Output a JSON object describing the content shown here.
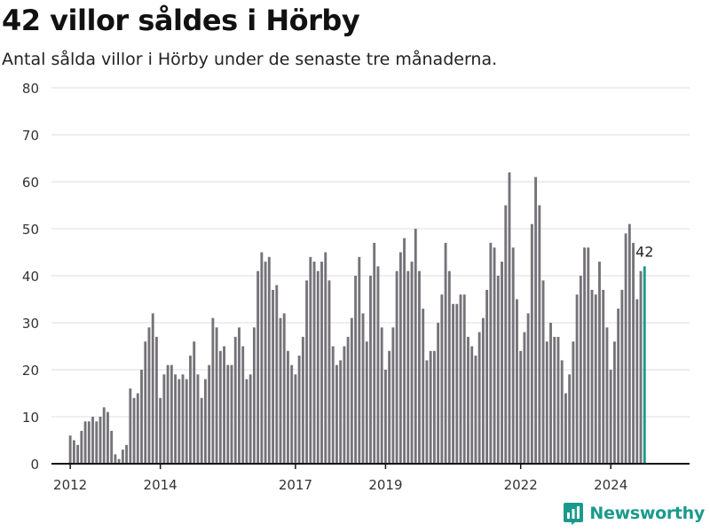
{
  "chart_data": {
    "type": "bar",
    "title": "42 villor såldes i Hörby",
    "subtitle": "Antal sålda villor i Hörby under de senaste tre månaderna.",
    "xlabel": "",
    "ylabel": "",
    "ylim": [
      0,
      80
    ],
    "yticks": [
      0,
      10,
      20,
      30,
      40,
      50,
      60,
      70,
      80
    ],
    "xlim": [
      "2011-08",
      "2025-10"
    ],
    "xticks": [
      {
        "value": "2012-01",
        "label": "2012"
      },
      {
        "value": "2014-01",
        "label": "2014"
      },
      {
        "value": "2017-01",
        "label": "2017"
      },
      {
        "value": "2019-01",
        "label": "2019"
      },
      {
        "value": "2022-01",
        "label": "2022"
      },
      {
        "value": "2024-01",
        "label": "2024"
      }
    ],
    "grid": true,
    "legend": "none",
    "bar_color": "#757378",
    "highlight_color": "#1a9a8c",
    "highlight_last": true,
    "annotation": {
      "text": "42",
      "at": "2024-10"
    },
    "months": [
      "2012-01",
      "2012-02",
      "2012-03",
      "2012-04",
      "2012-05",
      "2012-06",
      "2012-07",
      "2012-08",
      "2012-09",
      "2012-10",
      "2012-11",
      "2012-12",
      "2013-01",
      "2013-02",
      "2013-03",
      "2013-04",
      "2013-05",
      "2013-06",
      "2013-07",
      "2013-08",
      "2013-09",
      "2013-10",
      "2013-11",
      "2013-12",
      "2014-01",
      "2014-02",
      "2014-03",
      "2014-04",
      "2014-05",
      "2014-06",
      "2014-07",
      "2014-08",
      "2014-09",
      "2014-10",
      "2014-11",
      "2014-12",
      "2015-01",
      "2015-02",
      "2015-03",
      "2015-04",
      "2015-05",
      "2015-06",
      "2015-07",
      "2015-08",
      "2015-09",
      "2015-10",
      "2015-11",
      "2015-12",
      "2016-01",
      "2016-02",
      "2016-03",
      "2016-04",
      "2016-05",
      "2016-06",
      "2016-07",
      "2016-08",
      "2016-09",
      "2016-10",
      "2016-11",
      "2016-12",
      "2017-01",
      "2017-02",
      "2017-03",
      "2017-04",
      "2017-05",
      "2017-06",
      "2017-07",
      "2017-08",
      "2017-09",
      "2017-10",
      "2017-11",
      "2017-12",
      "2018-01",
      "2018-02",
      "2018-03",
      "2018-04",
      "2018-05",
      "2018-06",
      "2018-07",
      "2018-08",
      "2018-09",
      "2018-10",
      "2018-11",
      "2018-12",
      "2019-01",
      "2019-02",
      "2019-03",
      "2019-04",
      "2019-05",
      "2019-06",
      "2019-07",
      "2019-08",
      "2019-09",
      "2019-10",
      "2019-11",
      "2019-12",
      "2020-01",
      "2020-02",
      "2020-03",
      "2020-04",
      "2020-05",
      "2020-06",
      "2020-07",
      "2020-08",
      "2020-09",
      "2020-10",
      "2020-11",
      "2020-12",
      "2021-01",
      "2021-02",
      "2021-03",
      "2021-04",
      "2021-05",
      "2021-06",
      "2021-07",
      "2021-08",
      "2021-09",
      "2021-10",
      "2021-11",
      "2021-12",
      "2022-01",
      "2022-02",
      "2022-03",
      "2022-04",
      "2022-05",
      "2022-06",
      "2022-07",
      "2022-08",
      "2022-09",
      "2022-10",
      "2022-11",
      "2022-12",
      "2023-01",
      "2023-02",
      "2023-03",
      "2023-04",
      "2023-05",
      "2023-06",
      "2023-07",
      "2023-08",
      "2023-09",
      "2023-10",
      "2023-11",
      "2023-12",
      "2024-01",
      "2024-02",
      "2024-03",
      "2024-04",
      "2024-05",
      "2024-06",
      "2024-07",
      "2024-08",
      "2024-09",
      "2024-10"
    ],
    "values": [
      6,
      5,
      4,
      7,
      9,
      9,
      10,
      9,
      10,
      12,
      11,
      7,
      2,
      1,
      3,
      4,
      16,
      14,
      15,
      20,
      26,
      29,
      32,
      27,
      14,
      19,
      21,
      21,
      19,
      18,
      19,
      18,
      23,
      26,
      19,
      14,
      18,
      21,
      31,
      29,
      24,
      25,
      21,
      21,
      27,
      29,
      25,
      18,
      19,
      29,
      41,
      45,
      43,
      44,
      37,
      38,
      31,
      32,
      24,
      21,
      19,
      23,
      27,
      39,
      44,
      43,
      41,
      43,
      45,
      39,
      25,
      21,
      22,
      25,
      27,
      31,
      40,
      44,
      32,
      26,
      40,
      47,
      42,
      29,
      20,
      24,
      29,
      41,
      45,
      48,
      41,
      43,
      50,
      41,
      33,
      22,
      24,
      24,
      30,
      36,
      47,
      41,
      34,
      34,
      36,
      36,
      27,
      25,
      23,
      28,
      31,
      37,
      47,
      46,
      40,
      43,
      55,
      62,
      46,
      35,
      24,
      28,
      32,
      51,
      61,
      55,
      39,
      26,
      30,
      27,
      27,
      22,
      15,
      19,
      26,
      36,
      40,
      46,
      46,
      37,
      36,
      43,
      37,
      29,
      20,
      26,
      33,
      37,
      49,
      51,
      47,
      35,
      41,
      42
    ]
  },
  "brand": {
    "name": "Newsworthy",
    "color": "#1a9a8c",
    "icon": "newsworthy-logo-icon"
  }
}
